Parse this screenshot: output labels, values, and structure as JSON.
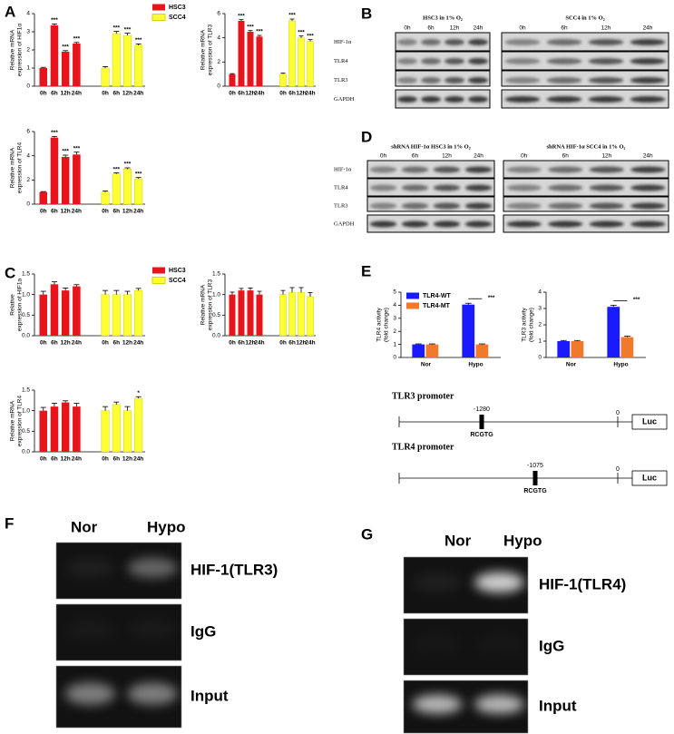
{
  "panel_labels": [
    "A",
    "B",
    "C",
    "D",
    "E",
    "F",
    "G"
  ],
  "chart_data": [
    {
      "type": "bar",
      "ylabel": [
        "Relative mRNA",
        "expression of HIF1α"
      ],
      "categories": [
        "0h",
        "6h",
        "12h",
        "24h"
      ],
      "ylim": [
        0,
        4
      ],
      "yticks": [
        0,
        1,
        2,
        3,
        4
      ],
      "series": [
        {
          "name": "HSC3",
          "color": "#e8141b",
          "values": [
            1,
            3.35,
            1.9,
            2.35
          ],
          "errors": [
            0.04,
            0.08,
            0.06,
            0.06
          ],
          "annotations": [
            null,
            "***",
            "***",
            "***"
          ]
        },
        {
          "name": "SCC4",
          "color": "#ffff33",
          "values": [
            1,
            2.9,
            2.8,
            2.25
          ],
          "errors": [
            0.08,
            0.12,
            0.12,
            0.08
          ],
          "annotations": [
            null,
            "***",
            "***",
            "***"
          ]
        }
      ]
    },
    {
      "type": "bar",
      "ylabel": [
        "Relative mRNA",
        "expression of TLR3"
      ],
      "categories": [
        "0h",
        "6h",
        "12h",
        "24h"
      ],
      "ylim": [
        0,
        6
      ],
      "yticks": [
        0,
        2,
        4,
        6
      ],
      "series": [
        {
          "color": "#e8141b",
          "values": [
            1,
            5.4,
            4.5,
            4.1
          ],
          "errors": [
            0.04,
            0.1,
            0.1,
            0.1
          ],
          "annotations": [
            null,
            "***",
            "***",
            "***"
          ]
        },
        {
          "color": "#ffff33",
          "values": [
            1,
            5.4,
            4.0,
            3.7
          ],
          "errors": [
            0.08,
            0.15,
            0.15,
            0.15
          ],
          "annotations": [
            null,
            "***",
            "***",
            "***"
          ]
        }
      ]
    },
    {
      "type": "bar",
      "ylabel": [
        "Relative mRNA",
        "expression of TLR4"
      ],
      "categories": [
        "0h",
        "6h",
        "12h",
        "24h"
      ],
      "ylim": [
        0,
        6
      ],
      "yticks": [
        0,
        2,
        4,
        6
      ],
      "series": [
        {
          "color": "#e8141b",
          "values": [
            1,
            5.5,
            3.9,
            4.1
          ],
          "errors": [
            0.04,
            0.1,
            0.15,
            0.2
          ],
          "annotations": [
            null,
            "***",
            "***",
            "***"
          ]
        },
        {
          "color": "#ffff33",
          "values": [
            1,
            2.5,
            2.9,
            2.1
          ],
          "errors": [
            0.08,
            0.08,
            0.1,
            0.1
          ],
          "annotations": [
            null,
            "***",
            "***",
            "***"
          ]
        }
      ]
    },
    {
      "type": "bar",
      "ylabel": [
        "Relative",
        "expression of HIF1a"
      ],
      "categories": [
        "0h",
        "6h",
        "12h",
        "24h"
      ],
      "ylim": [
        0,
        1.5
      ],
      "yticks": [
        {
          "value": 0,
          "label": "0.0"
        },
        0.5,
        {
          "value": 1,
          "label": "1.0"
        },
        1.5
      ],
      "series": [
        {
          "name": "HSC3",
          "color": "#e8141b",
          "values": [
            1.0,
            1.25,
            1.1,
            1.2
          ],
          "errors": [
            0.08,
            0.06,
            0.06,
            0.04
          ]
        },
        {
          "name": "SCC4",
          "color": "#ffff33",
          "values": [
            1.0,
            1.0,
            1.0,
            1.1
          ],
          "errors": [
            0.1,
            0.1,
            0.08,
            0.05
          ]
        }
      ]
    },
    {
      "type": "bar",
      "ylabel": [
        "Relative mRNA",
        "expression of TLR3"
      ],
      "categories": [
        "0h",
        "6h",
        "12h",
        "24h"
      ],
      "ylim": [
        0,
        1.5
      ],
      "yticks": [
        {
          "value": 0,
          "label": "0.0"
        },
        0.5,
        {
          "value": 1,
          "label": "1.0"
        },
        1.5
      ],
      "series": [
        {
          "color": "#e8141b",
          "values": [
            1.0,
            1.1,
            1.1,
            1.0
          ],
          "errors": [
            0.06,
            0.05,
            0.06,
            0.08
          ]
        },
        {
          "color": "#ffff33",
          "values": [
            1.0,
            1.05,
            1.05,
            0.95
          ],
          "errors": [
            0.1,
            0.12,
            0.12,
            0.1
          ]
        }
      ]
    },
    {
      "type": "bar",
      "ylabel": [
        "Relative mRNA",
        "expression of TLR4"
      ],
      "categories": [
        "0h",
        "6h",
        "12h",
        "24h"
      ],
      "ylim": [
        0,
        1.5
      ],
      "yticks": [
        {
          "value": 0,
          "label": "0.0"
        },
        0.5,
        {
          "value": 1,
          "label": "1.0"
        },
        1.5
      ],
      "series": [
        {
          "color": "#e8141b",
          "values": [
            1.0,
            1.1,
            1.2,
            1.1
          ],
          "errors": [
            0.08,
            0.08,
            0.04,
            0.08
          ]
        },
        {
          "color": "#ffff33",
          "values": [
            1.0,
            1.15,
            1.0,
            1.3
          ],
          "errors": [
            0.1,
            0.06,
            0.1,
            0.04
          ],
          "annotations": [
            null,
            null,
            null,
            "*"
          ]
        }
      ]
    },
    {
      "type": "grouped_bar",
      "ylabel": [
        "TLR4 activity",
        "(fold change)"
      ],
      "categories": [
        "Nor",
        "Hypo"
      ],
      "ylim": [
        0,
        5
      ],
      "yticks": [
        0,
        1,
        2,
        3,
        4,
        5
      ],
      "annotations": [
        null,
        "***"
      ],
      "series": [
        {
          "name": "TLR4-WT",
          "color": "#1a1aff",
          "values": [
            1.0,
            4.05
          ],
          "errors": [
            0.04,
            0.1
          ]
        },
        {
          "name": "TLR4-MT",
          "color": "#f07a2a",
          "values": [
            1.0,
            1.0
          ],
          "errors": [
            0.04,
            0.04
          ]
        }
      ]
    },
    {
      "type": "grouped_bar",
      "ylabel": [
        "TLR3 activity",
        "(fold change)"
      ],
      "categories": [
        "Nor",
        "Hypo"
      ],
      "ylim": [
        0,
        4
      ],
      "yticks": [
        0,
        1,
        2,
        3,
        4
      ],
      "annotations": [
        null,
        "***"
      ],
      "series": [
        {
          "color": "#1a1aff",
          "values": [
            1.0,
            3.1
          ],
          "errors": [
            0.04,
            0.1
          ]
        },
        {
          "color": "#f07a2a",
          "values": [
            1.0,
            1.25
          ],
          "errors": [
            0.04,
            0.06
          ]
        }
      ]
    }
  ],
  "blots": [
    {
      "panels": [
        {
          "title": "HSC3 in 1% O₂",
          "lanes": [
            "0h",
            "6h",
            "12h",
            "24h"
          ]
        },
        {
          "title": "SCC4 in 1% O₂",
          "lanes": [
            "0h",
            "6h",
            "12h",
            "24h"
          ]
        }
      ],
      "rows": [
        "HIF-1α",
        "TLR4",
        "TLR3",
        "GAPDH"
      ]
    },
    {
      "panels": [
        {
          "title": "shRNA HIF-1α  HSC3 in 1% O₂",
          "lanes": [
            "0h",
            "6h",
            "12h",
            "24h"
          ]
        },
        {
          "title": "shRNA HIF-1α  SCC4 in 1% O₂",
          "lanes": [
            "0h",
            "6h",
            "12h",
            "24h"
          ]
        }
      ],
      "rows": [
        "HIF-1α",
        "TLR4",
        "TLR3",
        "GAPDH"
      ]
    }
  ],
  "promoters": [
    {
      "title": "TLR3 promoter",
      "site": "-1280",
      "motif": "RCGTG",
      "start": "0",
      "reporter": "Luc"
    },
    {
      "title": "TLR4 promoter",
      "site": "-1075",
      "motif": "RCGTG",
      "start": "0",
      "reporter": "Luc"
    }
  ],
  "gels": [
    {
      "lanes": [
        "Nor",
        "Hypo"
      ],
      "rows": [
        "HIF-1(TLR3)",
        "IgG",
        "Input"
      ]
    },
    {
      "lanes": [
        "Nor",
        "Hypo"
      ],
      "rows": [
        "HIF-1(TLR4)",
        "IgG",
        "Input"
      ]
    }
  ]
}
